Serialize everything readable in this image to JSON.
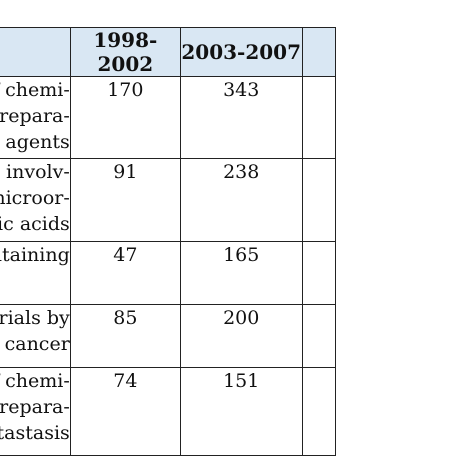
{
  "table": {
    "headers": [
      "",
      "1998-2002",
      "2003-2007",
      ""
    ],
    "rows": [
      {
        "label_lines": [
          "ity of chemi-",
          "nal prepara-",
          "c agents"
        ],
        "a": "170",
        "b": "343",
        "c": ""
      },
      {
        "label_lines": [
          "esses involv-",
          "s or microor-",
          "cleic acids"
        ],
        "a": "91",
        "b": "238",
        "c": ""
      },
      {
        "label_lines": [
          "containing",
          ""
        ],
        "a": "47",
        "b": "165",
        "c": ""
      },
      {
        "label_lines": [
          "materials by",
          "r cancer"
        ],
        "a": "85",
        "b": "200",
        "c": ""
      },
      {
        "label_lines": [
          "ity of chemi-",
          "nal prepara-",
          "etastasis"
        ],
        "a": "74",
        "b": "151",
        "c": ""
      }
    ]
  }
}
